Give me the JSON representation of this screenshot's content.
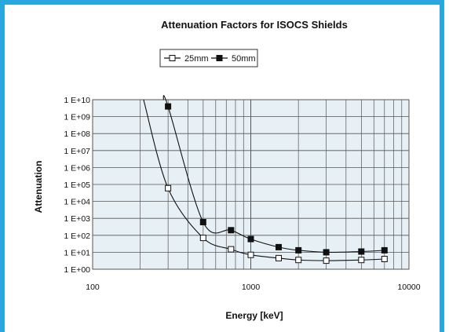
{
  "colors": {
    "frame": "#29a8e0",
    "plot_background": "#e6f0f5",
    "grid": "#555555",
    "series": "#111111"
  },
  "chart_data": {
    "type": "line",
    "title": "Attenuation Factors for ISOCS Shields",
    "xlabel": "Energy [keV]",
    "ylabel": "Attenuation",
    "x_scale": "log",
    "y_scale": "log",
    "xlim": [
      100,
      10000
    ],
    "ylim": [
      1,
      10000000000
    ],
    "x_tick_labels": [
      "100",
      "1000",
      "10000"
    ],
    "y_tick_labels": [
      "1 E+00",
      "1 E+01",
      "1 E+02",
      "1 E+03",
      "1 E+04",
      "1 E+05",
      "1 E+06",
      "1 E+07",
      "1 E+08",
      "1 E+09",
      "1 E+10"
    ],
    "grid": true,
    "legend_position": "top-center",
    "series": [
      {
        "name": "25mm",
        "marker": "open-square",
        "x": [
          300,
          500,
          750,
          1000,
          1500,
          2000,
          3000,
          5000,
          7000
        ],
        "y": [
          60000,
          70,
          15,
          7,
          4.5,
          3.5,
          3.2,
          3.5,
          4
        ],
        "curve_start": {
          "x": 210,
          "y": 10000000000
        }
      },
      {
        "name": "50mm",
        "marker": "filled-square",
        "x": [
          300,
          500,
          750,
          1000,
          1500,
          2000,
          3000,
          5000,
          7000
        ],
        "y": [
          4000000000,
          600,
          200,
          60,
          20,
          13,
          10,
          11,
          13
        ],
        "curve_start": {
          "x": 280,
          "y": 10000000000
        }
      }
    ]
  }
}
